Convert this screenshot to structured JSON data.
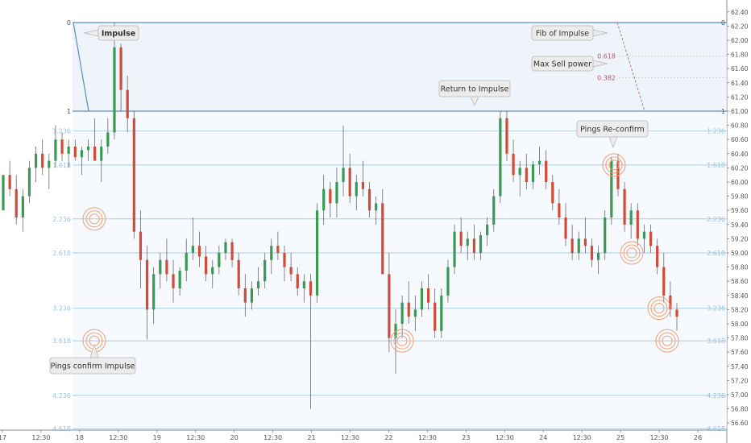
{
  "chart_data": {
    "type": "candlestick",
    "y_axis": {
      "ylim": [
        56.5,
        62.5
      ],
      "ticks": [
        "62.40",
        "62.20",
        "62.00",
        "61.80",
        "61.60",
        "61.40",
        "61.20",
        "61.00",
        "60.80",
        "60.60",
        "60.40",
        "60.20",
        "60.00",
        "59.80",
        "59.60",
        "59.40",
        "59.20",
        "59.00",
        "58.80",
        "58.60",
        "58.40",
        "58.20",
        "58.00",
        "57.80",
        "57.60",
        "57.40",
        "57.20",
        "57.00",
        "56.80",
        "56.60"
      ]
    },
    "x_axis": {
      "ticks": [
        "17",
        "12:30",
        "18",
        "12:30",
        "19",
        "12:30",
        "20",
        "12:30",
        "21",
        "12:30",
        "22",
        "12:30",
        "23",
        "12:30",
        "24",
        "12:30",
        "25",
        "12:30",
        "26"
      ]
    },
    "fib_levels": [
      {
        "label": "0",
        "price": 62.25
      },
      {
        "label": "1",
        "price": 61.0
      },
      {
        "label": "1.236",
        "price": 60.72
      },
      {
        "label": "1.618",
        "price": 60.24
      },
      {
        "label": "2.236",
        "price": 59.48
      },
      {
        "label": "2.618",
        "price": 59.0
      },
      {
        "label": "3.236",
        "price": 58.22
      },
      {
        "label": "3.618",
        "price": 57.76
      },
      {
        "label": "4.236",
        "price": 56.99
      },
      {
        "label": "4.618",
        "price": 56.52
      }
    ],
    "inner_fib": {
      "title": "Fib of Impulse",
      "levels": [
        {
          "label": "0.618",
          "price": 61.78
        },
        {
          "label": "0.382",
          "price": 61.47
        }
      ],
      "sub_label": "Max Sell power"
    },
    "callouts": [
      "Impulse",
      "Return to Impulse",
      "Pings Re-confirm",
      "Pings confirm Impulse",
      "Fib of Impulse",
      "Max Sell power"
    ],
    "series": [
      {
        "values": [
          [
            59.6,
            59.9,
            59.7,
            60.1
          ],
          [
            60.1,
            60.3,
            59.8,
            59.9
          ],
          [
            59.9,
            60.1,
            59.4,
            59.5
          ],
          [
            59.5,
            59.9,
            59.3,
            59.8
          ],
          [
            59.8,
            60.3,
            59.7,
            60.2
          ],
          [
            60.2,
            60.5,
            60.0,
            60.4
          ],
          [
            60.4,
            60.6,
            60.1,
            60.2
          ],
          [
            60.2,
            60.4,
            59.9,
            60.3
          ],
          [
            60.3,
            60.8,
            60.2,
            60.6
          ],
          [
            60.6,
            60.7,
            60.3,
            60.4
          ],
          [
            60.4,
            60.6,
            60.2,
            60.5
          ],
          [
            60.5,
            60.6,
            60.3,
            60.35
          ],
          [
            60.35,
            60.5,
            60.1,
            60.45
          ],
          [
            60.45,
            60.6,
            60.3,
            60.5
          ],
          [
            60.5,
            60.9,
            60.4,
            60.3
          ],
          [
            60.3,
            60.6,
            60.0,
            60.5
          ],
          [
            60.5,
            60.9,
            60.4,
            60.7
          ],
          [
            60.7,
            62.25,
            60.6,
            61.9
          ],
          [
            61.9,
            61.95,
            61.0,
            61.3
          ],
          [
            61.3,
            61.5,
            60.7,
            60.9
          ],
          [
            60.9,
            61.0,
            59.2,
            59.3
          ],
          [
            59.3,
            59.6,
            58.5,
            58.9
          ],
          [
            58.9,
            59.1,
            57.78,
            58.2
          ],
          [
            58.2,
            58.8,
            58.0,
            58.7
          ],
          [
            58.7,
            59.0,
            58.5,
            58.9
          ],
          [
            58.9,
            59.2,
            58.6,
            58.7
          ],
          [
            58.7,
            58.9,
            58.3,
            58.5
          ],
          [
            58.5,
            58.8,
            58.4,
            58.75
          ],
          [
            58.75,
            59.2,
            58.6,
            59.0
          ],
          [
            59.0,
            59.5,
            58.9,
            59.1
          ],
          [
            59.1,
            59.3,
            58.8,
            58.95
          ],
          [
            58.95,
            59.1,
            58.6,
            58.7
          ],
          [
            58.7,
            58.9,
            58.5,
            58.8
          ],
          [
            58.8,
            59.1,
            58.7,
            59.0
          ],
          [
            59.0,
            59.2,
            58.9,
            59.15
          ],
          [
            59.15,
            59.2,
            58.8,
            58.9
          ],
          [
            58.9,
            59.0,
            58.4,
            58.5
          ],
          [
            58.5,
            58.7,
            58.1,
            58.3
          ],
          [
            58.3,
            58.6,
            58.2,
            58.5
          ],
          [
            58.5,
            58.8,
            58.4,
            58.6
          ],
          [
            58.6,
            59.0,
            58.5,
            58.9
          ],
          [
            58.9,
            59.2,
            58.7,
            59.1
          ],
          [
            59.1,
            59.3,
            58.9,
            59.0
          ],
          [
            59.0,
            59.1,
            58.6,
            58.8
          ],
          [
            58.8,
            59.0,
            58.6,
            58.7
          ],
          [
            58.7,
            58.8,
            58.4,
            58.5
          ],
          [
            58.5,
            58.7,
            58.3,
            58.6
          ],
          [
            58.6,
            58.7,
            56.8,
            58.4
          ],
          [
            58.4,
            59.7,
            58.3,
            59.6
          ],
          [
            59.6,
            60.1,
            59.4,
            59.9
          ],
          [
            59.9,
            60.0,
            59.5,
            59.7
          ],
          [
            59.7,
            60.2,
            59.5,
            60.0
          ],
          [
            60.0,
            60.8,
            59.8,
            60.2
          ],
          [
            60.2,
            60.4,
            59.7,
            59.8
          ],
          [
            59.8,
            60.1,
            59.6,
            60.0
          ],
          [
            60.0,
            60.3,
            59.8,
            59.9
          ],
          [
            59.9,
            60.0,
            59.5,
            59.6
          ],
          [
            59.6,
            59.8,
            59.4,
            59.7
          ],
          [
            59.7,
            59.9,
            59.2,
            58.7
          ],
          [
            58.7,
            59.0,
            57.6,
            57.8
          ],
          [
            57.8,
            58.2,
            57.3,
            58.0
          ],
          [
            58.0,
            58.4,
            57.8,
            58.3
          ],
          [
            58.3,
            58.6,
            58.0,
            58.1
          ],
          [
            58.1,
            58.4,
            57.9,
            58.2
          ],
          [
            58.2,
            58.6,
            58.1,
            58.5
          ],
          [
            58.5,
            58.7,
            58.2,
            58.3
          ],
          [
            58.3,
            58.5,
            57.8,
            57.9
          ],
          [
            57.9,
            58.5,
            57.8,
            58.4
          ],
          [
            58.4,
            58.9,
            58.3,
            58.8
          ],
          [
            58.8,
            59.4,
            58.7,
            59.3
          ],
          [
            59.3,
            59.5,
            59.0,
            59.1
          ],
          [
            59.1,
            59.3,
            58.9,
            59.2
          ],
          [
            59.2,
            59.4,
            58.9,
            59.0
          ],
          [
            59.0,
            59.3,
            58.9,
            59.25
          ],
          [
            59.25,
            59.5,
            59.1,
            59.4
          ],
          [
            59.4,
            59.9,
            59.3,
            59.8
          ],
          [
            59.8,
            61.0,
            59.7,
            60.9
          ],
          [
            60.9,
            61.0,
            60.3,
            60.4
          ],
          [
            60.4,
            60.6,
            60.0,
            60.1
          ],
          [
            60.1,
            60.3,
            59.8,
            60.2
          ],
          [
            60.2,
            60.4,
            59.9,
            60.0
          ],
          [
            60.0,
            60.3,
            59.9,
            60.25
          ],
          [
            60.25,
            60.5,
            60.1,
            60.3
          ],
          [
            60.3,
            60.45,
            59.9,
            60.0
          ],
          [
            60.0,
            60.1,
            59.6,
            59.7
          ],
          [
            59.7,
            59.9,
            59.4,
            59.5
          ],
          [
            59.5,
            59.7,
            59.1,
            59.2
          ],
          [
            59.2,
            59.4,
            58.9,
            59.0
          ],
          [
            59.0,
            59.3,
            58.9,
            59.2
          ],
          [
            59.2,
            59.5,
            59.0,
            59.1
          ],
          [
            59.1,
            59.2,
            58.8,
            58.9
          ],
          [
            58.9,
            59.1,
            58.7,
            59.0
          ],
          [
            59.0,
            59.6,
            58.9,
            59.5
          ],
          [
            59.5,
            60.35,
            59.4,
            60.3
          ],
          [
            60.3,
            60.4,
            59.8,
            59.9
          ],
          [
            59.9,
            60.0,
            59.3,
            59.4
          ],
          [
            59.4,
            59.7,
            59.2,
            59.6
          ],
          [
            59.6,
            59.7,
            59.1,
            59.2
          ],
          [
            59.2,
            59.4,
            59.0,
            59.3
          ],
          [
            59.3,
            59.4,
            59.0,
            59.1
          ],
          [
            59.1,
            59.2,
            58.7,
            58.8
          ],
          [
            58.8,
            59.0,
            58.3,
            58.4
          ],
          [
            58.4,
            58.6,
            58.1,
            58.2
          ],
          [
            58.2,
            58.3,
            57.9,
            58.1
          ]
        ]
      }
    ]
  }
}
